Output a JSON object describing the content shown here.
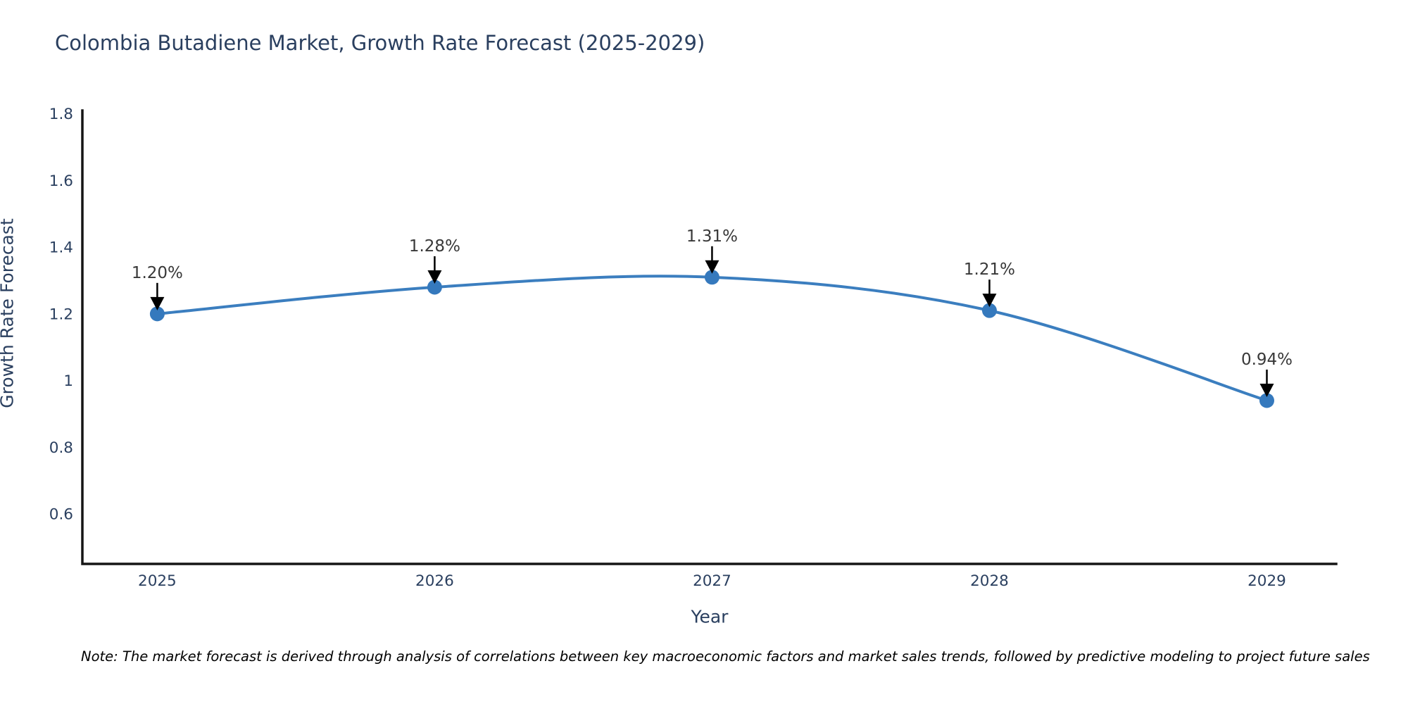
{
  "title": "Colombia Butadiene Market, Growth Rate Forecast (2025-2029)",
  "footnote": "Note: The market forecast is derived through analysis of correlations between key macroeconomic factors and market sales trends, followed by predictive modeling to project future sales",
  "colors": {
    "title_text": "#2a3f5f",
    "tick_text": "#2a3f5f",
    "axis_line": "#151515",
    "series_line": "#3b7ebf",
    "marker_fill": "#3579bd",
    "annotation_text": "#383838",
    "annotation_arrow": "#000000",
    "background": "#ffffff"
  },
  "chart_data": {
    "type": "line",
    "line_shape": "spline",
    "title": "Colombia Butadiene Market, Growth Rate Forecast (2025-2029)",
    "xlabel": "Year",
    "ylabel": "Growth Rate Forecast",
    "x": [
      2025,
      2026,
      2027,
      2028,
      2029
    ],
    "series": [
      {
        "name": "Growth Rate Forecast",
        "values": [
          1.2,
          1.28,
          1.31,
          1.21,
          0.94
        ]
      }
    ],
    "point_labels": [
      "1.20%",
      "1.28%",
      "1.31%",
      "1.21%",
      "0.94%"
    ],
    "x_ticks": {
      "values": [
        2025,
        2026,
        2027,
        2028,
        2029
      ],
      "labels": [
        "2025",
        "2026",
        "2027",
        "2028",
        "2029"
      ]
    },
    "y_ticks": {
      "values": [
        0.6,
        0.8,
        1.0,
        1.2,
        1.4,
        1.6,
        1.8
      ],
      "labels": [
        "0.6",
        "0.8",
        "1",
        "1.2",
        "1.4",
        "1.6",
        "1.8"
      ]
    },
    "xlim": [
      2024.73,
      2029.25
    ],
    "ylim": [
      0.45,
      1.81
    ],
    "grid": false,
    "legend": false
  }
}
